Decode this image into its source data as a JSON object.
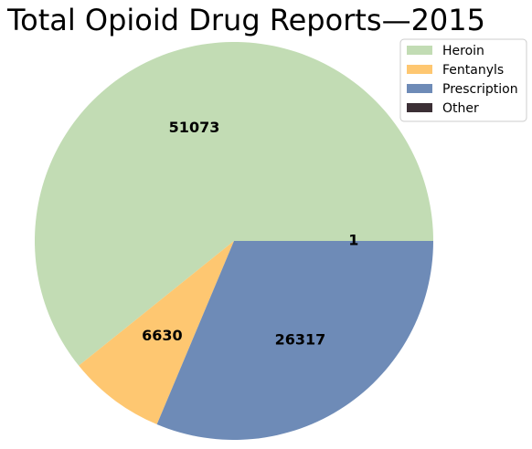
{
  "chart_data": {
    "type": "pie",
    "title": "Total Opioid Drug Reports—2015",
    "categories": [
      "Heroin",
      "Fentanyls",
      "Prescription",
      "Other"
    ],
    "values": [
      51073,
      6630,
      26317,
      1
    ],
    "labels": [
      "51073",
      "6630",
      "26317",
      "1"
    ],
    "colors": [
      "#c2dcb4",
      "#fec771",
      "#6e8bb7",
      "#3b2f35"
    ],
    "legend": {
      "placement": "top-right",
      "entries": [
        "Heroin",
        "Fentanyls",
        "Prescription",
        "Other"
      ]
    },
    "start_angle_deg": 0,
    "direction": "counterclockwise"
  }
}
